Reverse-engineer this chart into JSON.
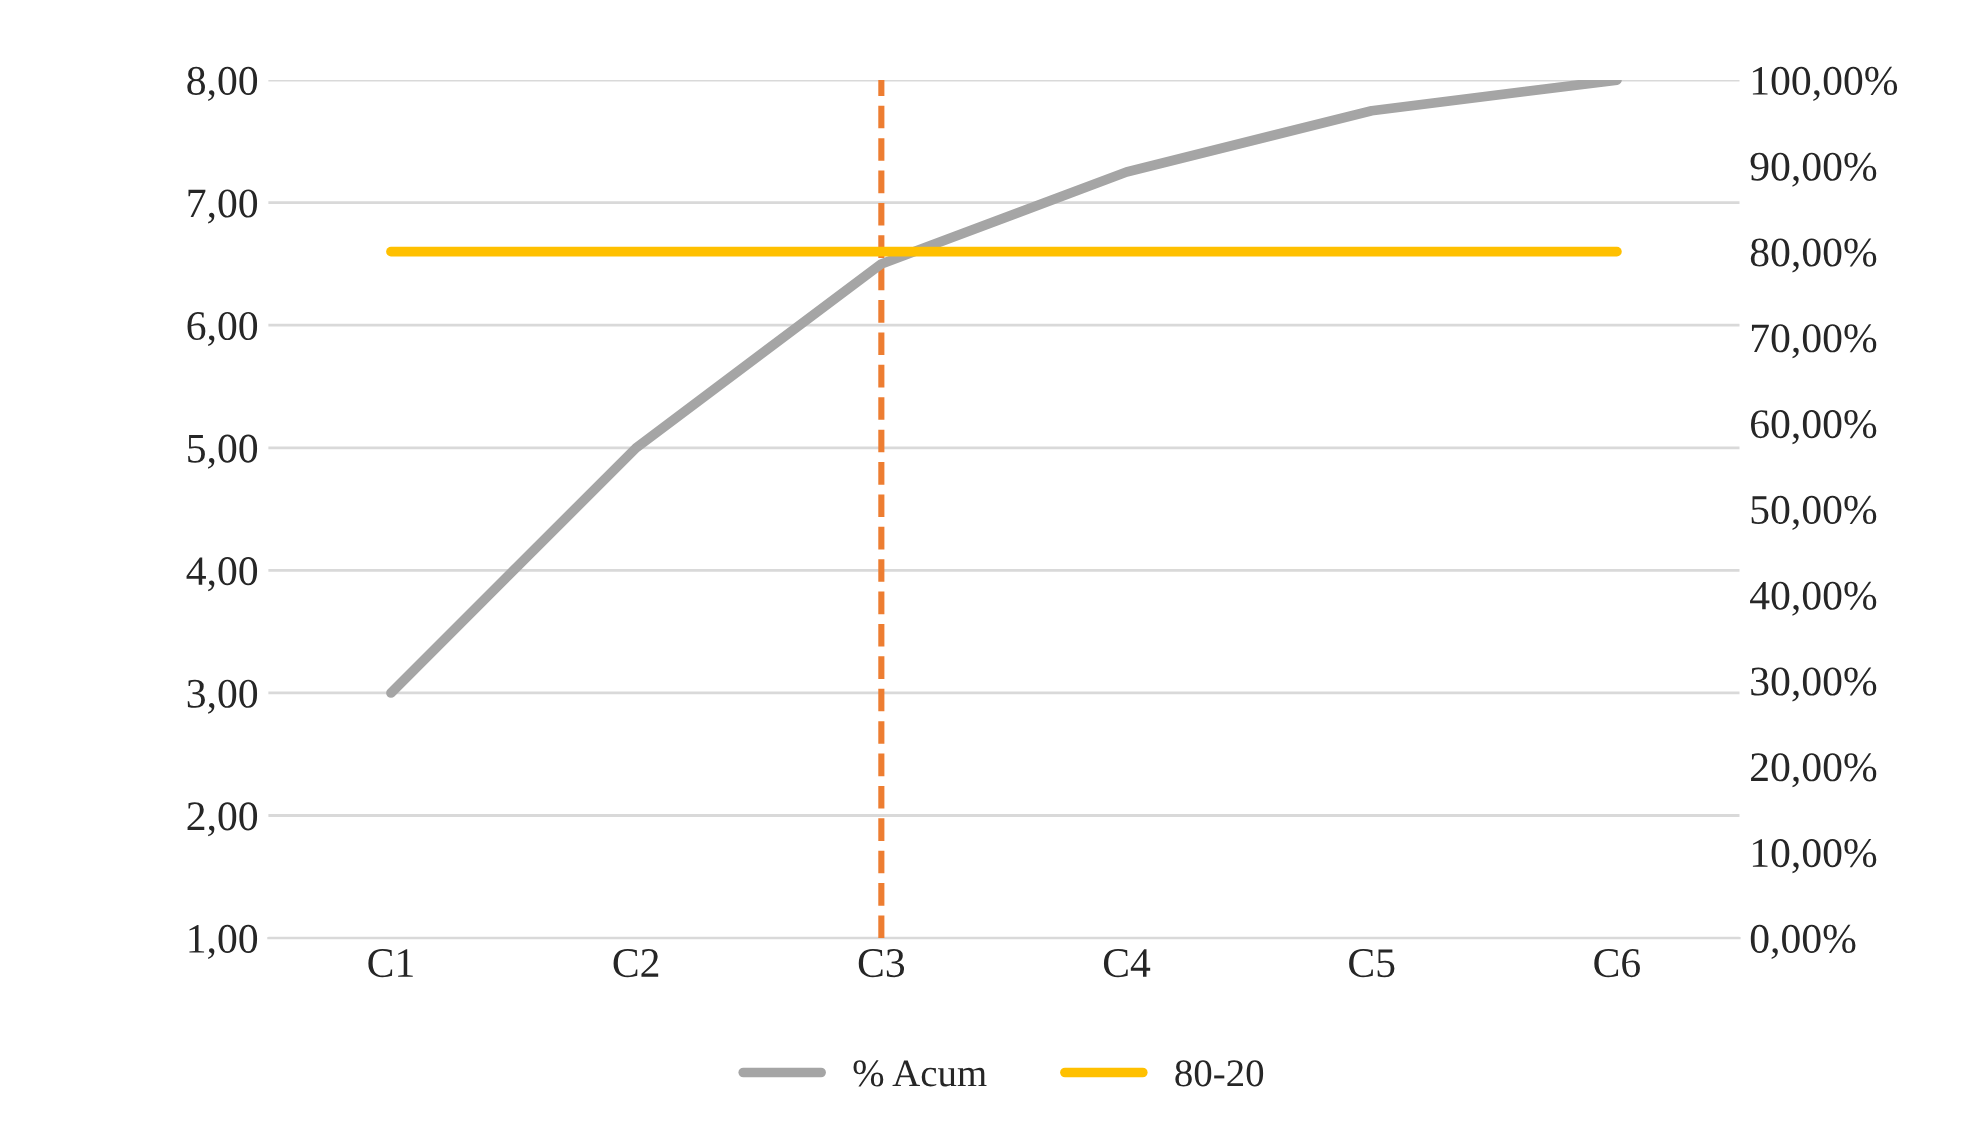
{
  "chart_data": {
    "type": "line",
    "categories": [
      "C1",
      "C2",
      "C3",
      "C4",
      "C5",
      "C6"
    ],
    "series": [
      {
        "name": "% Acum",
        "color": "#a5a5a5",
        "axis": "y2",
        "values": [
          28.57,
          57.14,
          78.57,
          89.29,
          96.43,
          100
        ]
      },
      {
        "name": "80-20",
        "color": "#ffc000",
        "axis": "y2",
        "values": [
          80,
          80,
          80,
          80,
          80,
          80
        ]
      }
    ],
    "ylim": [
      1,
      8
    ],
    "yticks": [
      {
        "value": 1,
        "label": "1,00"
      },
      {
        "value": 2,
        "label": "2,00"
      },
      {
        "value": 3,
        "label": "3,00"
      },
      {
        "value": 4,
        "label": "4,00"
      },
      {
        "value": 5,
        "label": "5,00"
      },
      {
        "value": 6,
        "label": "6,00"
      },
      {
        "value": 7,
        "label": "7,00"
      },
      {
        "value": 8,
        "label": "8,00"
      }
    ],
    "y2lim": [
      0,
      100
    ],
    "y2ticks": [
      {
        "value": 0,
        "label": "0,00%"
      },
      {
        "value": 10,
        "label": "10,00%"
      },
      {
        "value": 20,
        "label": "20,00%"
      },
      {
        "value": 30,
        "label": "30,00%"
      },
      {
        "value": 40,
        "label": "40,00%"
      },
      {
        "value": 50,
        "label": "50,00%"
      },
      {
        "value": 60,
        "label": "60,00%"
      },
      {
        "value": 70,
        "label": "70,00%"
      },
      {
        "value": 80,
        "label": "80,00%"
      },
      {
        "value": 90,
        "label": "90,00%"
      },
      {
        "value": 100,
        "label": "100,00%"
      }
    ],
    "ref_lines": [
      {
        "axis": "x",
        "value": "C3",
        "color": "#ed7d31",
        "line_style": "dashed"
      }
    ],
    "grid": "y",
    "legend": "bottom",
    "marker": "none",
    "line_style": "solid"
  }
}
